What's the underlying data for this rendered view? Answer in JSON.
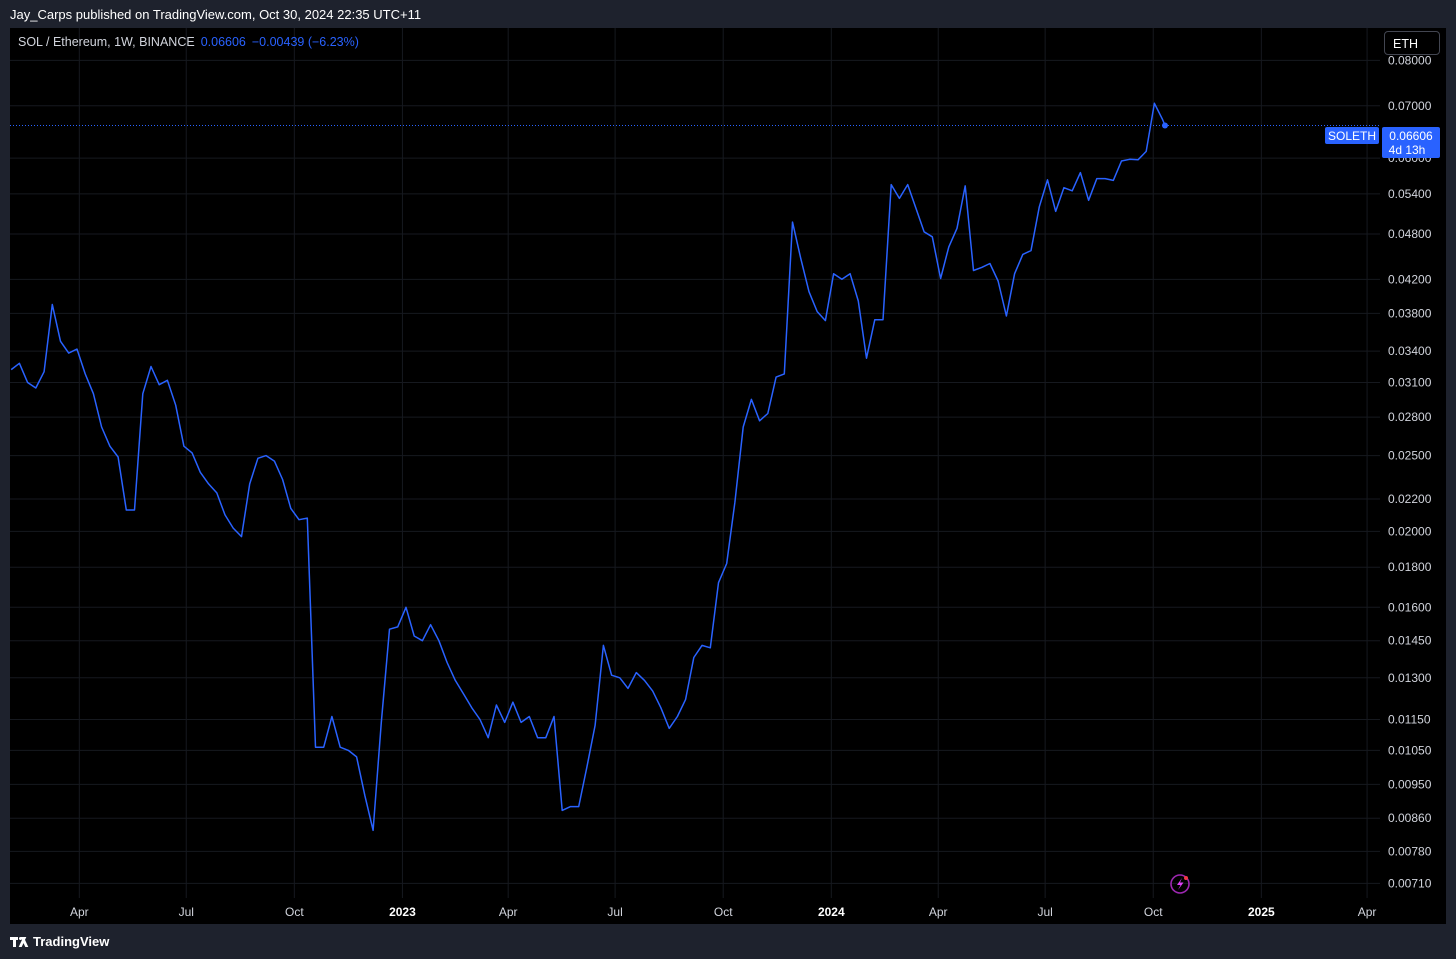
{
  "header": {
    "published": "Jay_Carps published on TradingView.com, Oct 30, 2024 22:35 UTC+11"
  },
  "legend": {
    "symbol": "SOL / Ethereum, 1W, BINANCE",
    "price": "0.06606",
    "change": "−0.00439 (−6.23%)"
  },
  "currency_button": {
    "label": "ETH"
  },
  "price_label": {
    "symbol": "SOLETH",
    "price": "0.06606",
    "countdown": "4d 13h"
  },
  "footer": {
    "brand": "TradingView"
  },
  "colors": {
    "line": "#2962ff",
    "background": "#000000",
    "grid": "#16191f"
  },
  "chart_data": {
    "type": "line",
    "title": "",
    "xlabel": "",
    "ylabel": "",
    "y_scale": "log",
    "ylim": [
      0.0068,
      0.088
    ],
    "yticks": [
      "0.08000",
      "0.07000",
      "0.06000",
      "0.05400",
      "0.04800",
      "0.04200",
      "0.03800",
      "0.03400",
      "0.03100",
      "0.02800",
      "0.02500",
      "0.02200",
      "0.02000",
      "0.01800",
      "0.01600",
      "0.01450",
      "0.01300",
      "0.01150",
      "0.01050",
      "0.00950",
      "0.00860",
      "0.00780",
      "0.00710"
    ],
    "xticks": [
      {
        "label": "Apr",
        "date": "2022-04-01",
        "bold": false
      },
      {
        "label": "Jul",
        "date": "2022-07-01",
        "bold": false
      },
      {
        "label": "Oct",
        "date": "2022-10-01",
        "bold": false
      },
      {
        "label": "2023",
        "date": "2023-01-01",
        "bold": true
      },
      {
        "label": "Apr",
        "date": "2023-04-01",
        "bold": false
      },
      {
        "label": "Jul",
        "date": "2023-07-01",
        "bold": false
      },
      {
        "label": "Oct",
        "date": "2023-10-01",
        "bold": false
      },
      {
        "label": "2024",
        "date": "2024-01-01",
        "bold": true
      },
      {
        "label": "Apr",
        "date": "2024-04-01",
        "bold": false
      },
      {
        "label": "Jul",
        "date": "2024-07-01",
        "bold": false
      },
      {
        "label": "Oct",
        "date": "2024-10-01",
        "bold": false
      },
      {
        "label": "2025",
        "date": "2025-01-01",
        "bold": true
      },
      {
        "label": "Apr",
        "date": "2025-04-01",
        "bold": false
      }
    ],
    "xlim": [
      "2022-02-01",
      "2025-04-12"
    ],
    "last_value": 0.06606,
    "series": [
      {
        "values": [
          [
            "2022-02-02",
            0.0322
          ],
          [
            "2022-02-09",
            0.0328
          ],
          [
            "2022-02-16",
            0.031
          ],
          [
            "2022-02-23",
            0.0305
          ],
          [
            "2022-03-02",
            0.032
          ],
          [
            "2022-03-09",
            0.039
          ],
          [
            "2022-03-16",
            0.035
          ],
          [
            "2022-03-23",
            0.0338
          ],
          [
            "2022-03-30",
            0.0342
          ],
          [
            "2022-04-06",
            0.0318
          ],
          [
            "2022-04-13",
            0.03
          ],
          [
            "2022-04-20",
            0.0272
          ],
          [
            "2022-04-27",
            0.0257
          ],
          [
            "2022-05-04",
            0.0249
          ],
          [
            "2022-05-11",
            0.0213
          ],
          [
            "2022-05-18",
            0.0213
          ],
          [
            "2022-05-25",
            0.03
          ],
          [
            "2022-06-01",
            0.0325
          ],
          [
            "2022-06-08",
            0.0308
          ],
          [
            "2022-06-15",
            0.0312
          ],
          [
            "2022-06-22",
            0.029
          ],
          [
            "2022-06-29",
            0.0257
          ],
          [
            "2022-07-06",
            0.0252
          ],
          [
            "2022-07-13",
            0.0238
          ],
          [
            "2022-07-20",
            0.023
          ],
          [
            "2022-07-27",
            0.0224
          ],
          [
            "2022-08-03",
            0.021
          ],
          [
            "2022-08-10",
            0.0202
          ],
          [
            "2022-08-17",
            0.0197
          ],
          [
            "2022-08-24",
            0.023
          ],
          [
            "2022-08-31",
            0.0248
          ],
          [
            "2022-09-07",
            0.025
          ],
          [
            "2022-09-14",
            0.0246
          ],
          [
            "2022-09-21",
            0.0233
          ],
          [
            "2022-09-28",
            0.0214
          ],
          [
            "2022-10-05",
            0.0207
          ],
          [
            "2022-10-12",
            0.0208
          ],
          [
            "2022-10-19",
            0.0106
          ],
          [
            "2022-10-26",
            0.0106
          ],
          [
            "2022-11-02",
            0.0116
          ],
          [
            "2022-11-09",
            0.0106
          ],
          [
            "2022-11-16",
            0.0105
          ],
          [
            "2022-11-23",
            0.0103
          ],
          [
            "2022-11-30",
            0.0092
          ],
          [
            "2022-12-07",
            0.0083
          ],
          [
            "2022-12-14",
            0.0114
          ],
          [
            "2022-12-21",
            0.015
          ],
          [
            "2022-12-28",
            0.0151
          ],
          [
            "2023-01-04",
            0.016
          ],
          [
            "2023-01-11",
            0.0147
          ],
          [
            "2023-01-18",
            0.0145
          ],
          [
            "2023-01-25",
            0.0152
          ],
          [
            "2023-02-01",
            0.0145
          ],
          [
            "2023-02-08",
            0.0136
          ],
          [
            "2023-02-15",
            0.0129
          ],
          [
            "2023-02-22",
            0.0124
          ],
          [
            "2023-03-01",
            0.0119
          ],
          [
            "2023-03-08",
            0.0115
          ],
          [
            "2023-03-15",
            0.0109
          ],
          [
            "2023-03-22",
            0.012
          ],
          [
            "2023-03-29",
            0.0114
          ],
          [
            "2023-04-05",
            0.0121
          ],
          [
            "2023-04-12",
            0.0114
          ],
          [
            "2023-04-19",
            0.0116
          ],
          [
            "2023-04-26",
            0.0109
          ],
          [
            "2023-05-03",
            0.0109
          ],
          [
            "2023-05-10",
            0.0116
          ],
          [
            "2023-05-17",
            0.0088
          ],
          [
            "2023-05-24",
            0.0089
          ],
          [
            "2023-05-31",
            0.0089
          ],
          [
            "2023-06-07",
            0.01
          ],
          [
            "2023-06-14",
            0.0113
          ],
          [
            "2023-06-21",
            0.0143
          ],
          [
            "2023-06-28",
            0.0131
          ],
          [
            "2023-07-05",
            0.013
          ],
          [
            "2023-07-12",
            0.0126
          ],
          [
            "2023-07-19",
            0.0132
          ],
          [
            "2023-07-26",
            0.0129
          ],
          [
            "2023-08-02",
            0.0125
          ],
          [
            "2023-08-09",
            0.0119
          ],
          [
            "2023-08-16",
            0.0112
          ],
          [
            "2023-08-23",
            0.0116
          ],
          [
            "2023-08-30",
            0.0122
          ],
          [
            "2023-09-06",
            0.0138
          ],
          [
            "2023-09-13",
            0.0143
          ],
          [
            "2023-09-20",
            0.0142
          ],
          [
            "2023-09-27",
            0.0172
          ],
          [
            "2023-10-04",
            0.0182
          ],
          [
            "2023-10-11",
            0.0218
          ],
          [
            "2023-10-18",
            0.0272
          ],
          [
            "2023-10-25",
            0.0295
          ],
          [
            "2023-11-01",
            0.0277
          ],
          [
            "2023-11-08",
            0.0283
          ],
          [
            "2023-11-15",
            0.0315
          ],
          [
            "2023-11-22",
            0.0318
          ],
          [
            "2023-11-29",
            0.0497
          ],
          [
            "2023-12-06",
            0.0447
          ],
          [
            "2023-12-13",
            0.0405
          ],
          [
            "2023-12-20",
            0.0382
          ],
          [
            "2023-12-27",
            0.0372
          ],
          [
            "2024-01-03",
            0.0427
          ],
          [
            "2024-01-10",
            0.042
          ],
          [
            "2024-01-17",
            0.0427
          ],
          [
            "2024-01-24",
            0.0394
          ],
          [
            "2024-01-31",
            0.0333
          ],
          [
            "2024-02-07",
            0.0373
          ],
          [
            "2024-02-14",
            0.0373
          ],
          [
            "2024-02-21",
            0.0555
          ],
          [
            "2024-02-28",
            0.0533
          ],
          [
            "2024-03-06",
            0.0555
          ],
          [
            "2024-03-13",
            0.0518
          ],
          [
            "2024-03-20",
            0.0483
          ],
          [
            "2024-03-27",
            0.0476
          ],
          [
            "2024-04-03",
            0.0421
          ],
          [
            "2024-04-10",
            0.0462
          ],
          [
            "2024-04-17",
            0.0488
          ],
          [
            "2024-04-24",
            0.0553
          ],
          [
            "2024-05-01",
            0.0431
          ],
          [
            "2024-05-08",
            0.0435
          ],
          [
            "2024-05-15",
            0.044
          ],
          [
            "2024-05-22",
            0.0418
          ],
          [
            "2024-05-29",
            0.0377
          ],
          [
            "2024-06-05",
            0.0427
          ],
          [
            "2024-06-12",
            0.0452
          ],
          [
            "2024-06-19",
            0.0457
          ],
          [
            "2024-06-26",
            0.052
          ],
          [
            "2024-07-03",
            0.0563
          ],
          [
            "2024-07-10",
            0.0513
          ],
          [
            "2024-07-17",
            0.055
          ],
          [
            "2024-07-24",
            0.0545
          ],
          [
            "2024-07-31",
            0.0575
          ],
          [
            "2024-08-07",
            0.053
          ],
          [
            "2024-08-14",
            0.0565
          ],
          [
            "2024-08-21",
            0.0565
          ],
          [
            "2024-08-28",
            0.0562
          ],
          [
            "2024-09-04",
            0.0595
          ],
          [
            "2024-09-11",
            0.0598
          ],
          [
            "2024-09-18",
            0.0597
          ],
          [
            "2024-09-25",
            0.0612
          ],
          [
            "2024-10-02",
            0.0705
          ],
          [
            "2024-10-09",
            0.0672
          ],
          [
            "2024-10-11",
            0.06606
          ]
        ]
      }
    ],
    "grid": true,
    "legend_position": "top-left"
  }
}
